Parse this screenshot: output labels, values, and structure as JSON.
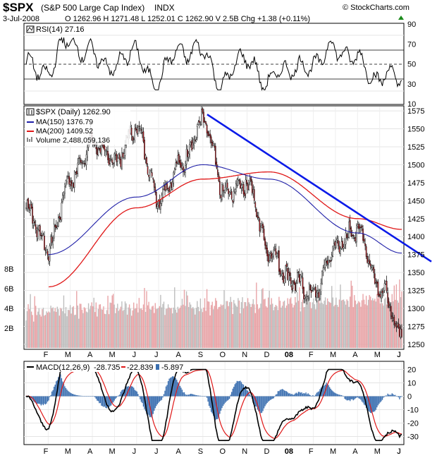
{
  "header": {
    "symbol": "$SPX",
    "name": "(S&P 500 Large Cap Index)",
    "exchange": "INDX",
    "source": "© StockCharts.com",
    "date": "3-Jul-2008",
    "ohlc": "O 1262.96  H 1271.48  L 1252.01  C 1262.90  V 2.5B  Chg +1.38 (+0.11%)"
  },
  "rsi": {
    "label": "RSI(14) 27.16",
    "ticks": [
      "90",
      "70",
      "50",
      "30",
      "10"
    ]
  },
  "price": {
    "label": "$SPX (Daily) 1262.90",
    "legend": [
      {
        "text": "MA(150) 1376.79",
        "color": "#1f1fa8"
      },
      {
        "text": "MA(200) 1409.52",
        "color": "#e01818"
      },
      {
        "text": "Volume 2,488,059,136",
        "color": "#888888"
      }
    ],
    "ticks": [
      "1575",
      "1550",
      "1525",
      "1500",
      "1475",
      "1450",
      "1425",
      "1400",
      "1375",
      "1350",
      "1325",
      "1300",
      "1275",
      "1250"
    ],
    "vol_ticks": [
      "8B",
      "6B",
      "4B",
      "2B"
    ]
  },
  "macd": {
    "label": "MACD(12,26,9)",
    "v1": "-28.735",
    "v2": "-22.839",
    "v3": "-5.897",
    "ticks": [
      "20",
      "10",
      "0",
      "-10",
      "-20",
      "-30"
    ]
  },
  "months": [
    "F",
    "M",
    "A",
    "M",
    "J",
    "J",
    "A",
    "S",
    "O",
    "N",
    "D",
    "08",
    "F",
    "M",
    "A",
    "M",
    "J",
    "J"
  ],
  "colors": {
    "ma150": "#1f1fa8",
    "ma200": "#e01818",
    "trendline": "#0a1ae8",
    "bull": "#ffffff",
    "bear": "#c1272d",
    "hist": "#3b6fb0"
  },
  "chart_data": {
    "type": "line",
    "title": "$SPX (S&P 500 Large Cap Index)",
    "x_range": [
      "2007-02",
      "2008-07"
    ],
    "approx_close": [
      [
        "2007-02",
        1440
      ],
      [
        "2007-03",
        1385
      ],
      [
        "2007-04",
        1480
      ],
      [
        "2007-05",
        1530
      ],
      [
        "2007-06",
        1505
      ],
      [
        "2007-07",
        1550
      ],
      [
        "2007-08",
        1455
      ],
      [
        "2007-09",
        1500
      ],
      [
        "2007-10",
        1560
      ],
      [
        "2007-11",
        1460
      ],
      [
        "2007-12",
        1475
      ],
      [
        "2008-01",
        1380
      ],
      [
        "2008-02",
        1340
      ],
      [
        "2008-03",
        1320
      ],
      [
        "2008-04",
        1385
      ],
      [
        "2008-05",
        1410
      ],
      [
        "2008-06",
        1330
      ],
      [
        "2008-07",
        1262.9
      ]
    ],
    "ma150_approx": [
      [
        "2007-03",
        1375
      ],
      [
        "2007-07",
        1455
      ],
      [
        "2007-10",
        1500
      ],
      [
        "2008-01",
        1480
      ],
      [
        "2008-05",
        1405
      ],
      [
        "2008-07",
        1377
      ]
    ],
    "ma200_approx": [
      [
        "2007-03",
        1330
      ],
      [
        "2007-07",
        1440
      ],
      [
        "2007-10",
        1480
      ],
      [
        "2008-01",
        1490
      ],
      [
        "2008-05",
        1425
      ],
      [
        "2008-07",
        1410
      ]
    ],
    "trendline": [
      [
        "2007-10",
        1570
      ],
      [
        "2008-07",
        1375
      ]
    ],
    "price_ylim": [
      1245,
      1580
    ],
    "rsi_ylim": [
      10,
      90
    ],
    "macd_ylim": [
      -35,
      25
    ]
  }
}
